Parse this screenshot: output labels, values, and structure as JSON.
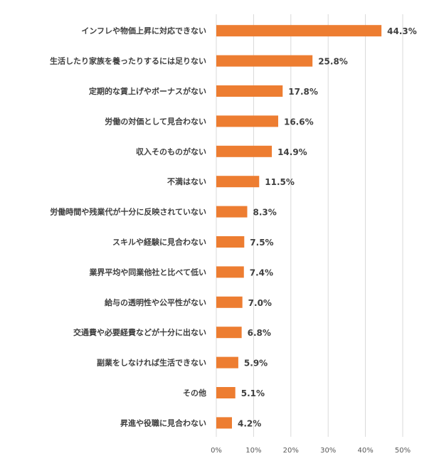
{
  "chart_data": {
    "type": "bar",
    "orientation": "horizontal",
    "categories": [
      "インフレや物価上昇に対応できない",
      "生活したり家族を養ったりするには足りない",
      "定期的な賃上げやボーナスがない",
      "労働の対価として見合わない",
      "収入そのものがない",
      "不満はない",
      "労働時間や残業代が十分に反映されていない",
      "スキルや経験に見合わない",
      "業界平均や同業他社と比べて低い",
      "給与の透明性や公平性がない",
      "交通費や必要経費などが十分に出ない",
      "副業をしなければ生活できない",
      "その他",
      "昇進や役職に見合わない"
    ],
    "values": [
      44.3,
      25.8,
      17.8,
      16.6,
      14.9,
      11.5,
      8.3,
      7.5,
      7.4,
      7.0,
      6.8,
      5.9,
      5.1,
      4.2
    ],
    "data_labels": [
      "44.3%",
      "25.8%",
      "17.8%",
      "16.6%",
      "14.9%",
      "11.5%",
      "8.3%",
      "7.5%",
      "7.4%",
      "7.0%",
      "6.8%",
      "5.9%",
      "5.1%",
      "4.2%"
    ],
    "x_ticks": [
      0,
      10,
      20,
      30,
      40,
      50
    ],
    "x_tick_labels": [
      "0%",
      "10%",
      "20%",
      "30%",
      "40%",
      "50%"
    ],
    "xlim": [
      0,
      50
    ],
    "grid": true,
    "legend": "none",
    "bar_color": "#ED7D31"
  }
}
